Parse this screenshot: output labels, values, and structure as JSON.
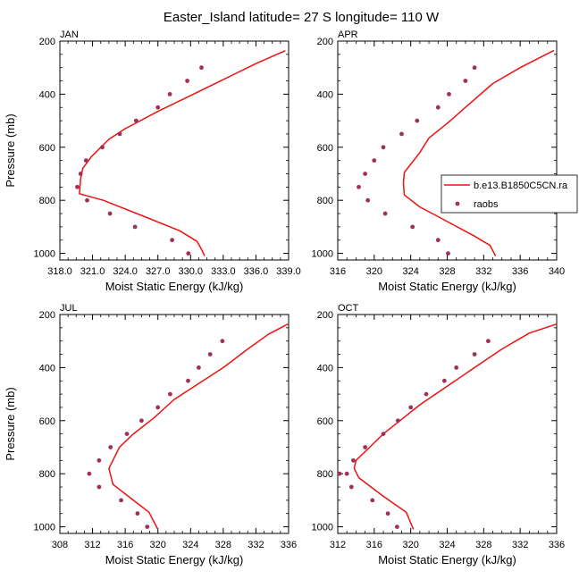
{
  "figure_title": "Easter_Island  latitude= 27 S longitude= 110 W",
  "colors": {
    "model": "#ee1111",
    "raobs": "#a0305a",
    "axis": "#000000"
  },
  "legend": {
    "model_label": "b.e13.B1850C5CN.ra",
    "obs_label": "raobs",
    "placement": "right of APR panel"
  },
  "chart_data": [
    {
      "type": "line",
      "title": "JAN",
      "xlabel": "Moist Static Energy (kJ/kg)",
      "ylabel": "Pressure (mb)",
      "xlim": [
        318,
        339
      ],
      "xticks": [
        318,
        321,
        324,
        327,
        330,
        333,
        336,
        339
      ],
      "xticklabels": [
        "318.0",
        "321.0",
        "324.0",
        "327.0",
        "330.0",
        "333.0",
        "336.0",
        "339.0"
      ],
      "ylim": [
        200,
        1025
      ],
      "yticks": [
        200,
        400,
        600,
        800,
        1000
      ],
      "series": [
        {
          "name": "b.e13.B1850C5CN.ra",
          "kind": "line",
          "x": [
            338.7,
            336.0,
            333.0,
            330.0,
            327.0,
            324.0,
            322.5,
            320.9,
            320.1,
            319.9,
            319.8,
            322.0,
            326.0,
            329.0,
            330.6,
            331.0,
            331.3
          ],
          "y": [
            236,
            285,
            345,
            405,
            465,
            530,
            570,
            635,
            680,
            720,
            775,
            800,
            865,
            915,
            955,
            985,
            1010
          ]
        },
        {
          "name": "raobs",
          "kind": "points",
          "x": [
            331.0,
            329.7,
            328.1,
            327.0,
            325.0,
            323.5,
            321.9,
            320.4,
            319.9,
            319.6,
            320.5,
            322.6,
            324.9,
            328.3,
            329.8
          ],
          "y": [
            300,
            350,
            400,
            450,
            500,
            550,
            600,
            650,
            700,
            750,
            800,
            850,
            900,
            950,
            1000
          ]
        }
      ]
    },
    {
      "type": "line",
      "title": "APR",
      "xlabel": "Moist Static Energy (kJ/kg)",
      "ylabel": "",
      "xlim": [
        316,
        340
      ],
      "xticks": [
        316,
        320,
        324,
        328,
        332,
        336,
        340
      ],
      "xticklabels": [
        "316",
        "320",
        "324",
        "328",
        "332",
        "336",
        "340"
      ],
      "ylim": [
        200,
        1025
      ],
      "yticks": [
        200,
        400,
        600,
        800,
        1000
      ],
      "series": [
        {
          "name": "b.e13.B1850C5CN.ra",
          "kind": "line",
          "x": [
            339.7,
            336.0,
            333.0,
            330.0,
            328.0,
            326.0,
            325.0,
            323.3,
            323.2,
            323.3,
            325.0,
            328.0,
            331.0,
            332.7,
            333.3
          ],
          "y": [
            235,
            300,
            360,
            450,
            510,
            565,
            620,
            695,
            735,
            780,
            825,
            880,
            935,
            970,
            1010
          ]
        },
        {
          "name": "raobs",
          "kind": "points",
          "x": [
            331.0,
            330.0,
            328.2,
            327.0,
            324.7,
            323.0,
            321.0,
            320.0,
            319.0,
            318.3,
            319.3,
            321.2,
            324.2,
            327.0,
            328.1
          ],
          "y": [
            300,
            350,
            400,
            450,
            500,
            550,
            600,
            650,
            700,
            750,
            800,
            850,
            900,
            950,
            1000
          ]
        }
      ]
    },
    {
      "type": "line",
      "title": "JUL",
      "xlabel": "Moist Static Energy (kJ/kg)",
      "ylabel": "Pressure (mb)",
      "xlim": [
        308,
        336
      ],
      "xticks": [
        308,
        312,
        316,
        320,
        324,
        328,
        332,
        336
      ],
      "xticklabels": [
        "308",
        "312",
        "316",
        "320",
        "324",
        "328",
        "332",
        "336"
      ],
      "ylim": [
        200,
        1025
      ],
      "yticks": [
        200,
        400,
        600,
        800,
        1000
      ],
      "series": [
        {
          "name": "b.e13.B1850C5CN.ra",
          "kind": "line",
          "x": [
            335.9,
            333.5,
            331.0,
            328.0,
            325.0,
            322.0,
            319.5,
            317.0,
            315.3,
            314.0,
            314.5,
            317.0,
            318.9,
            320.0
          ],
          "y": [
            236,
            275,
            330,
            400,
            460,
            520,
            590,
            650,
            700,
            780,
            840,
            900,
            945,
            1010
          ]
        },
        {
          "name": "raobs",
          "kind": "points",
          "x": [
            327.9,
            326.4,
            325.0,
            323.7,
            321.5,
            320.0,
            318.0,
            316.2,
            314.2,
            312.8,
            311.6,
            312.8,
            315.5,
            317.5,
            318.7
          ],
          "y": [
            300,
            350,
            400,
            450,
            500,
            550,
            600,
            650,
            700,
            750,
            800,
            850,
            900,
            950,
            1000
          ]
        }
      ]
    },
    {
      "type": "line",
      "title": "OCT",
      "xlabel": "Moist Static Energy (kJ/kg)",
      "ylabel": "",
      "xlim": [
        312,
        336
      ],
      "xticks": [
        312,
        316,
        320,
        324,
        328,
        332,
        336
      ],
      "xticklabels": [
        "312",
        "316",
        "320",
        "324",
        "328",
        "332",
        "336"
      ],
      "ylim": [
        200,
        1025
      ],
      "yticks": [
        200,
        400,
        600,
        800,
        1000
      ],
      "series": [
        {
          "name": "b.e13.B1850C5CN.ra",
          "kind": "line",
          "x": [
            336.0,
            333.0,
            330.0,
            327.0,
            324.0,
            321.0,
            319.0,
            317.0,
            315.5,
            314.0,
            313.8,
            314.3,
            317.0,
            319.5,
            320.3
          ],
          "y": [
            236,
            270,
            330,
            400,
            470,
            540,
            595,
            650,
            700,
            750,
            780,
            815,
            885,
            945,
            1010
          ]
        },
        {
          "name": "raobs",
          "kind": "points",
          "x": [
            328.5,
            327.0,
            325.0,
            323.7,
            321.7,
            320.0,
            318.6,
            317.0,
            315.0,
            313.7,
            313.0,
            312.2,
            313.5,
            315.8,
            317.5,
            318.5
          ],
          "y": [
            300,
            350,
            400,
            450,
            500,
            550,
            600,
            650,
            700,
            750,
            800,
            800,
            850,
            900,
            950,
            1000
          ]
        }
      ]
    }
  ]
}
